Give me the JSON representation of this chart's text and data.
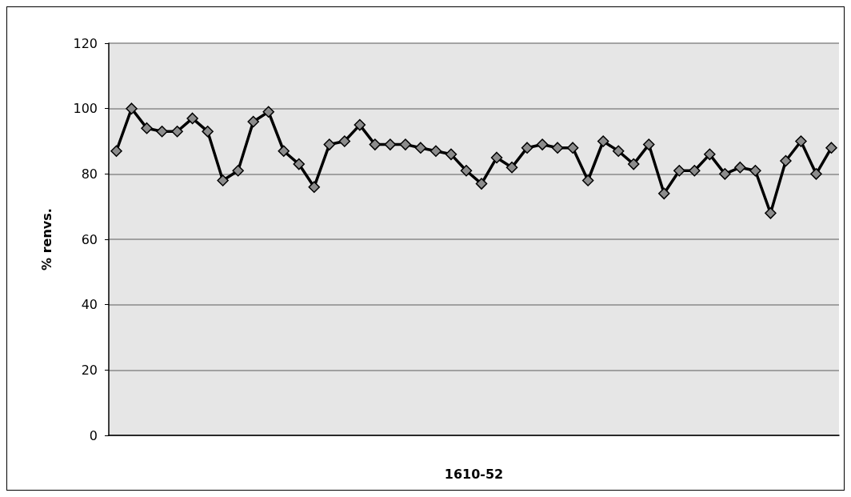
{
  "chart_data": {
    "type": "line",
    "xlabel": "1610-52",
    "ylabel": "% renvs.",
    "categories": [
      null,
      null,
      null,
      null,
      null,
      null,
      null,
      null,
      null,
      null,
      null,
      null,
      null,
      null,
      null,
      null,
      null,
      null,
      null,
      null,
      null,
      null,
      null,
      null,
      null,
      null,
      null,
      null,
      null,
      null,
      null,
      null,
      null,
      null,
      null,
      null,
      null,
      null,
      null,
      null,
      null,
      null,
      null,
      null,
      null,
      null,
      null,
      null
    ],
    "series": [
      {
        "color": "#000000",
        "values": [
          87,
          100,
          94,
          93,
          93,
          97,
          93,
          78,
          81,
          96,
          99,
          87,
          83,
          76,
          89,
          90,
          95,
          89,
          89,
          89,
          88,
          87,
          86,
          81,
          77,
          85,
          82,
          88,
          89,
          88,
          88,
          78,
          90,
          87,
          83,
          89,
          74,
          81,
          81,
          86,
          80,
          82,
          81,
          68,
          84,
          90,
          80,
          88
        ]
      }
    ],
    "ylim": [
      0,
      120
    ],
    "yticks": [
      0,
      20,
      40,
      60,
      80,
      100,
      120
    ],
    "grid": "y",
    "marker": "diamond",
    "line_style": "solid"
  }
}
